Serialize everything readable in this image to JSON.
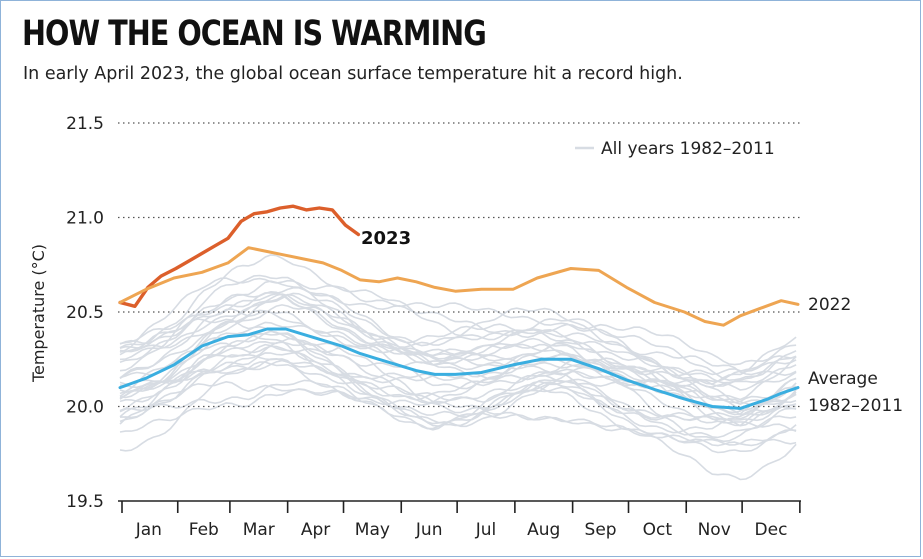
{
  "header": {
    "title": "HOW THE OCEAN IS WARMING",
    "subtitle": "In early April 2023, the global ocean surface temperature hit a record high."
  },
  "colors": {
    "series_2023": "#dc5f2b",
    "series_2022": "#eea552",
    "series_average": "#3aaee0",
    "background_years": "#d7dce3",
    "gridline": "#555555"
  },
  "chart_data": {
    "type": "line",
    "title": "",
    "xlabel": "",
    "ylabel": "Temperature (°C)",
    "ylim": [
      19.5,
      21.5
    ],
    "yticks": [
      "19.5",
      "20.0",
      "20.5",
      "21.0",
      "21.5"
    ],
    "yticks_values": [
      19.5,
      20.0,
      20.5,
      21.0,
      21.5
    ],
    "categories": [
      "Jan",
      "Feb",
      "Mar",
      "Apr",
      "May",
      "Jun",
      "Jul",
      "Aug",
      "Sep",
      "Oct",
      "Nov",
      "Dec"
    ],
    "grid": "horizontal dotted",
    "legend": {
      "label": "All years 1982–2011",
      "placement": "top-right"
    },
    "series": [
      {
        "name": "2023",
        "label": "2023",
        "x": [
          1,
          9,
          16,
          23,
          31,
          38,
          45,
          52,
          59,
          66,
          73,
          80,
          87,
          94,
          101,
          108,
          115,
          122,
          129
        ],
        "values": [
          20.55,
          20.53,
          20.63,
          20.69,
          20.73,
          20.77,
          20.81,
          20.85,
          20.89,
          20.98,
          21.02,
          21.03,
          21.05,
          21.06,
          21.04,
          21.05,
          21.04,
          20.96,
          20.91
        ]
      },
      {
        "name": "2022",
        "label": "2022",
        "x": [
          1,
          15,
          30,
          45,
          59,
          70,
          80,
          90,
          100,
          110,
          120,
          130,
          140,
          150,
          160,
          170,
          181,
          195,
          212,
          225,
          243,
          258,
          273,
          288,
          304,
          315,
          325,
          334,
          345,
          356,
          365
        ],
        "values": [
          20.55,
          20.62,
          20.68,
          20.71,
          20.76,
          20.84,
          20.82,
          20.8,
          20.78,
          20.76,
          20.72,
          20.67,
          20.66,
          20.68,
          20.66,
          20.63,
          20.61,
          20.62,
          20.62,
          20.68,
          20.73,
          20.72,
          20.63,
          20.55,
          20.5,
          20.45,
          20.43,
          20.48,
          20.52,
          20.56,
          20.54
        ]
      },
      {
        "name": "Average 1982–2011",
        "label": "Average\n1982–2011",
        "x": [
          1,
          15,
          30,
          45,
          59,
          70,
          80,
          90,
          100,
          110,
          120,
          130,
          140,
          150,
          160,
          170,
          181,
          195,
          212,
          227,
          243,
          258,
          273,
          288,
          304,
          319,
          334,
          349,
          356,
          365
        ],
        "values": [
          20.1,
          20.15,
          20.22,
          20.32,
          20.37,
          20.38,
          20.41,
          20.41,
          20.38,
          20.35,
          20.32,
          20.28,
          20.25,
          20.22,
          20.19,
          20.17,
          20.17,
          20.18,
          20.22,
          20.25,
          20.25,
          20.2,
          20.14,
          20.09,
          20.04,
          20.0,
          19.99,
          20.04,
          20.07,
          20.1
        ]
      }
    ]
  }
}
